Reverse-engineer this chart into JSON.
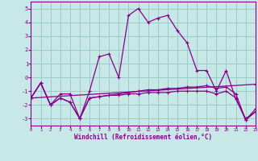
{
  "xlabel": "Windchill (Refroidissement éolien,°C)",
  "bg_color": "#c8e8e8",
  "line_color": "#880088",
  "grid_color": "#99cccc",
  "xlim": [
    0,
    23
  ],
  "ylim": [
    -3.5,
    5.5
  ],
  "yticks": [
    -3,
    -2,
    -1,
    0,
    1,
    2,
    3,
    4,
    5
  ],
  "xticks": [
    0,
    1,
    2,
    3,
    4,
    5,
    6,
    7,
    8,
    9,
    10,
    11,
    12,
    13,
    14,
    15,
    16,
    17,
    18,
    19,
    20,
    21,
    22,
    23
  ],
  "curve1_x": [
    0,
    1,
    2,
    3,
    4,
    5,
    6,
    7,
    8,
    9,
    10,
    11,
    12,
    13,
    14,
    15,
    16,
    17,
    18,
    19,
    20,
    21,
    22,
    23
  ],
  "curve1_y": [
    -1.5,
    -0.4,
    -2.0,
    -1.2,
    -1.2,
    -3.0,
    -1.0,
    1.5,
    1.7,
    0.0,
    4.5,
    5.0,
    4.0,
    4.3,
    4.5,
    3.4,
    2.5,
    0.5,
    0.5,
    -1.0,
    0.5,
    -1.6,
    -3.0,
    -2.5
  ],
  "curve2_x": [
    0,
    1,
    2,
    3,
    4,
    5,
    6,
    7,
    8,
    9,
    10,
    11,
    12,
    13,
    14,
    15,
    16,
    17,
    18,
    19,
    20,
    21,
    22,
    23
  ],
  "curve2_y": [
    -1.5,
    -0.4,
    -2.0,
    -1.5,
    -1.8,
    -3.0,
    -1.5,
    -1.4,
    -1.3,
    -1.3,
    -1.2,
    -1.2,
    -1.1,
    -1.1,
    -1.1,
    -1.0,
    -1.0,
    -1.0,
    -1.0,
    -1.2,
    -1.0,
    -1.5,
    -3.1,
    -2.5
  ],
  "curve3_x": [
    0,
    1,
    2,
    3,
    4,
    5,
    6,
    7,
    8,
    9,
    10,
    11,
    12,
    13,
    14,
    15,
    16,
    17,
    18,
    19,
    20,
    21,
    22,
    23
  ],
  "curve3_y": [
    -1.5,
    -0.4,
    -2.0,
    -1.5,
    -1.8,
    -3.0,
    -1.5,
    -1.4,
    -1.3,
    -1.2,
    -1.1,
    -1.0,
    -0.9,
    -0.9,
    -0.8,
    -0.8,
    -0.7,
    -0.7,
    -0.6,
    -0.8,
    -0.7,
    -1.2,
    -3.1,
    -2.3
  ],
  "curve4_x": [
    0,
    23
  ],
  "curve4_y": [
    -1.5,
    -0.5
  ]
}
